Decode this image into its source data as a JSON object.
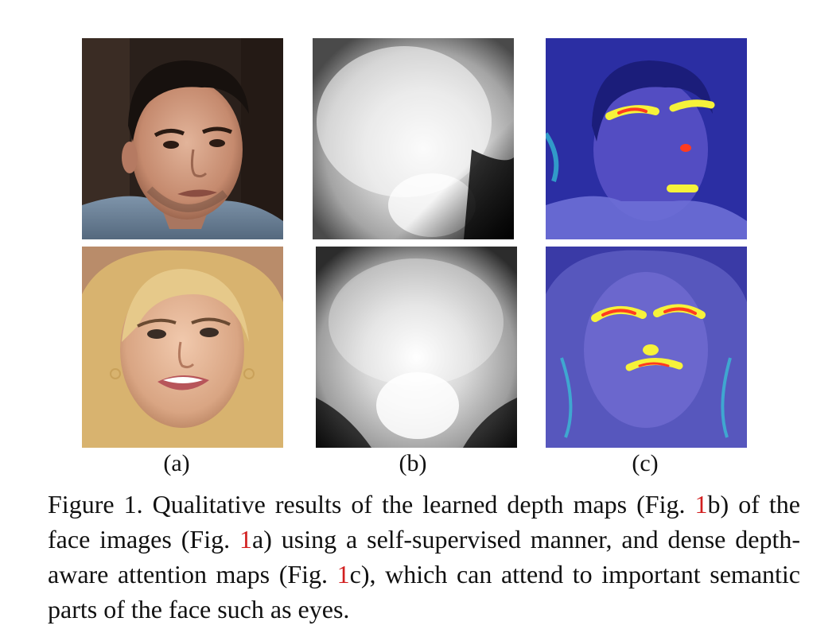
{
  "figure": {
    "panel_labels": [
      "(a)",
      "(b)",
      "(c)"
    ],
    "caption": {
      "prefix": "Figure 1.",
      "text_1": " Qualitative results of the learned depth maps (Fig. ",
      "ref_1": "1",
      "text_2": "b) of the face images (Fig. ",
      "ref_2": "1",
      "text_3": "a) using a self-supervised manner, and dense depth-aware attention maps (Fig. ",
      "ref_3": "1",
      "text_4": "c), which can attend to important semantic parts of the face such as eyes."
    },
    "colors": {
      "ref_link": "#d21f1f",
      "attention_overlay": "#3b3bd6",
      "hot": "#ff3b1f",
      "warm": "#f6f23a"
    }
  }
}
